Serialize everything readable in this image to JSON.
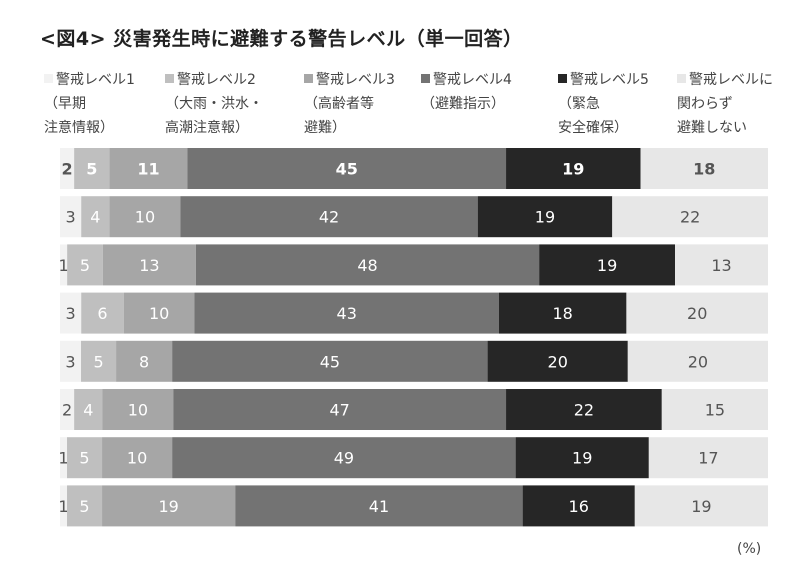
{
  "chart_data": {
    "type": "bar",
    "stacked": "100%",
    "orientation": "horizontal",
    "title": "<図4> 災害発生時に避難する警告レベル（単一回答）",
    "unit_label": "(%)",
    "series": [
      {
        "name": "警戒レベル1\n（早期\n注意情報）",
        "color": "#f2f2f2",
        "values": [
          2,
          3,
          1,
          3,
          3,
          2,
          1,
          1
        ]
      },
      {
        "name": "警戒レベル2\n（大雨・洪水・\n高潮注意報）",
        "color": "#bfbfbf",
        "values": [
          5,
          4,
          5,
          6,
          5,
          4,
          5,
          5
        ]
      },
      {
        "name": "警戒レベル3\n（高齢者等\n避難）",
        "color": "#a6a6a6",
        "values": [
          11,
          10,
          13,
          10,
          8,
          10,
          10,
          19
        ]
      },
      {
        "name": "警戒レベル4\n（避難指示）",
        "color": "#737373",
        "values": [
          45,
          42,
          48,
          43,
          45,
          47,
          49,
          41
        ]
      },
      {
        "name": "警戒レベル5\n（緊急\n安全確保）",
        "color": "#262626",
        "values": [
          19,
          19,
          19,
          18,
          20,
          22,
          19,
          16
        ]
      },
      {
        "name": "警戒レベルに\n関わらず\n避難しない",
        "color": "#e7e7e7",
        "values": [
          18,
          22,
          13,
          20,
          20,
          15,
          17,
          19
        ]
      }
    ]
  }
}
